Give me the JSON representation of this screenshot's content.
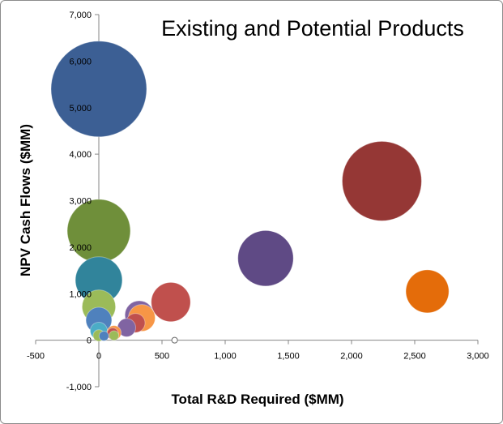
{
  "chart_data": {
    "type": "bubble",
    "title": "Existing and Potential Products",
    "xlabel": "Total R&D Required ($MM)",
    "ylabel": "NPV Cash Flows ($MM)",
    "xlim": [
      -500,
      3000
    ],
    "ylim": [
      -1000,
      7000
    ],
    "x_ticks": [
      -500,
      0,
      500,
      1000,
      1500,
      2000,
      2500,
      3000
    ],
    "x_tick_labels": [
      "-500",
      "0",
      "500",
      "1,000",
      "1,500",
      "2,000",
      "2,500",
      "3,000"
    ],
    "y_ticks": [
      -1000,
      0,
      1000,
      2000,
      3000,
      4000,
      5000,
      6000,
      7000
    ],
    "y_tick_labels": [
      "-1,000",
      "0",
      "1,000",
      "2,000",
      "3,000",
      "4,000",
      "5,000",
      "6,000",
      "7,000"
    ],
    "grid": false,
    "legend": "none",
    "points": [
      {
        "x": 0,
        "y": 5400,
        "size": 1,
        "color": "#3c5f94"
      },
      {
        "x": 2240,
        "y": 3420,
        "size": 0.83,
        "color": "#953735"
      },
      {
        "x": 0,
        "y": 2350,
        "size": 0.66,
        "color": "#6f8f3a"
      },
      {
        "x": 1320,
        "y": 1760,
        "size": 0.58,
        "color": "#5f4a85"
      },
      {
        "x": 0,
        "y": 1290,
        "size": 0.49,
        "color": "#31849b"
      },
      {
        "x": 2600,
        "y": 1050,
        "size": 0.45,
        "color": "#e46c0a"
      },
      {
        "x": 570,
        "y": 820,
        "size": 0.41,
        "color": "#c0504d"
      },
      {
        "x": 0,
        "y": 720,
        "size": 0.35,
        "color": "#9bbb59"
      },
      {
        "x": 320,
        "y": 540,
        "size": 0.3,
        "color": "#8064a2"
      },
      {
        "x": 340,
        "y": 480,
        "size": 0.28,
        "color": "#f79646"
      },
      {
        "x": 0,
        "y": 430,
        "size": 0.27,
        "color": "#4f81bd"
      },
      {
        "x": 290,
        "y": 370,
        "size": 0.2,
        "color": "#c0504d"
      },
      {
        "x": 220,
        "y": 270,
        "size": 0.19,
        "color": "#8064a2"
      },
      {
        "x": 0,
        "y": 200,
        "size": 0.18,
        "color": "#4bacc6"
      },
      {
        "x": 120,
        "y": 160,
        "size": 0.15,
        "color": "#f79646"
      },
      {
        "x": 110,
        "y": 140,
        "size": 0.12,
        "color": "#c0504d"
      },
      {
        "x": 0,
        "y": 100,
        "size": 0.12,
        "color": "#9bbb59"
      },
      {
        "x": 40,
        "y": 90,
        "size": 0.1,
        "color": "#4f81bd"
      },
      {
        "x": 120,
        "y": 100,
        "size": 0.1,
        "color": "#9bbb59"
      },
      {
        "x": 600,
        "y": 0,
        "size": 0.06,
        "color": "#ffffff"
      }
    ]
  }
}
